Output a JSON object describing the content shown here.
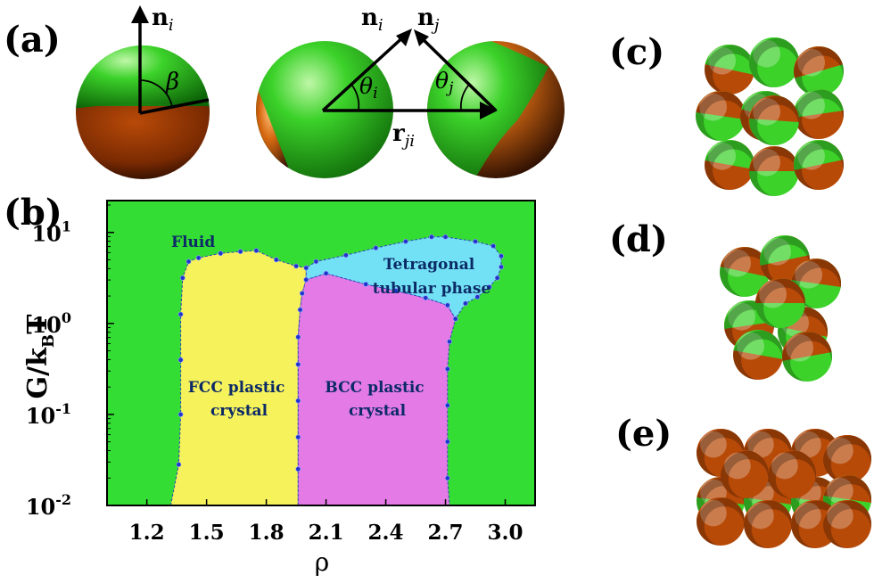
{
  "panel_labels": {
    "a": "(a)",
    "b": "(b)",
    "c": "(c)",
    "d": "(d)",
    "e": "(e)"
  },
  "vectors": {
    "n_i_single": "n",
    "n_i_single_sub": "i",
    "beta": "β",
    "n_i_pair": "n",
    "n_i_pair_sub": "i",
    "n_j_pair": "n",
    "n_j_pair_sub": "j",
    "theta_i": "θ",
    "theta_i_sub": "i",
    "theta_j": "θ",
    "theta_j_sub": "j",
    "r_ji": "r",
    "r_ji_sub": "ji"
  },
  "colors": {
    "patch_green": "#3cd22a",
    "patch_orange": "#b84a08",
    "fluid": "#33dd33",
    "fcc": "#f6f25c",
    "bcc": "#e37ae6",
    "tetragonal": "#73e1f5",
    "boundary_points": "#2233cc"
  },
  "chart_data": {
    "type": "area",
    "title": "",
    "xlabel": "ρ",
    "ylabel_main": "G/k",
    "ylabel_sub": "B",
    "ylabel_tail": "T",
    "xlim": [
      1.0,
      3.15
    ],
    "ylim_log10": [
      -2,
      1.35
    ],
    "y_scale": "log",
    "grid": false,
    "xticks": [
      1.2,
      1.5,
      1.8,
      2.1,
      2.4,
      2.7,
      3.0
    ],
    "xtick_labels": [
      "1.2",
      "1.5",
      "1.8",
      "2.1",
      "2.4",
      "2.7",
      "3.0"
    ],
    "yticks_log10": [
      -2,
      -1,
      0,
      1
    ],
    "ytick_bases": [
      "10",
      "10",
      "10",
      "10"
    ],
    "ytick_exps": [
      "-2",
      "-1",
      "0",
      "1"
    ],
    "phases": [
      {
        "name": "Fluid",
        "label_lines": [
          "Fluid"
        ]
      },
      {
        "name": "FCC plastic crystal",
        "label_lines": [
          "FCC plastic",
          "crystal"
        ],
        "boundary": [
          [
            1.32,
            -2
          ],
          [
            1.36,
            -1.55
          ],
          [
            1.37,
            -1.0
          ],
          [
            1.37,
            -0.4
          ],
          [
            1.37,
            0.1
          ],
          [
            1.38,
            0.5
          ],
          [
            1.41,
            0.68
          ],
          [
            1.46,
            0.72
          ],
          [
            1.57,
            0.77
          ],
          [
            1.67,
            0.79
          ],
          [
            1.75,
            0.8
          ],
          [
            1.85,
            0.7
          ],
          [
            1.95,
            0.63
          ],
          [
            2.0,
            0.61
          ],
          [
            2.0,
            0.48
          ],
          [
            1.98,
            0.33
          ],
          [
            1.97,
            0.15
          ],
          [
            1.96,
            -0.15
          ],
          [
            1.96,
            -0.45
          ],
          [
            1.96,
            -0.85
          ],
          [
            1.96,
            -1.25
          ],
          [
            1.96,
            -1.6
          ],
          [
            1.96,
            -2
          ]
        ]
      },
      {
        "name": "BCC plastic crystal",
        "label_lines": [
          "BCC  plastic",
          "crystal"
        ],
        "boundary": [
          [
            1.96,
            -2
          ],
          [
            1.96,
            -1.6
          ],
          [
            1.96,
            -1.25
          ],
          [
            1.96,
            -0.85
          ],
          [
            1.96,
            -0.45
          ],
          [
            1.96,
            -0.15
          ],
          [
            1.97,
            0.15
          ],
          [
            1.98,
            0.33
          ],
          [
            2.0,
            0.48
          ],
          [
            2.1,
            0.55
          ],
          [
            2.3,
            0.43
          ],
          [
            2.45,
            0.36
          ],
          [
            2.6,
            0.28
          ],
          [
            2.71,
            0.2
          ],
          [
            2.75,
            0.05
          ],
          [
            2.72,
            -0.2
          ],
          [
            2.71,
            -0.5
          ],
          [
            2.71,
            -0.9
          ],
          [
            2.71,
            -1.3
          ],
          [
            2.71,
            -1.7
          ],
          [
            2.72,
            -2
          ]
        ]
      },
      {
        "name": "Tetragonal tubular phase",
        "label_lines": [
          "Tetragonal",
          "tubular phase"
        ],
        "boundary": [
          [
            2.0,
            0.48
          ],
          [
            2.0,
            0.61
          ],
          [
            2.05,
            0.68
          ],
          [
            2.2,
            0.75
          ],
          [
            2.35,
            0.83
          ],
          [
            2.5,
            0.9
          ],
          [
            2.63,
            0.95
          ],
          [
            2.7,
            0.95
          ],
          [
            2.85,
            0.9
          ],
          [
            2.94,
            0.85
          ],
          [
            2.98,
            0.74
          ],
          [
            2.98,
            0.62
          ],
          [
            2.96,
            0.5
          ],
          [
            2.92,
            0.4
          ],
          [
            2.86,
            0.29
          ],
          [
            2.8,
            0.22
          ],
          [
            2.75,
            0.05
          ],
          [
            2.71,
            0.2
          ],
          [
            2.6,
            0.28
          ],
          [
            2.45,
            0.36
          ],
          [
            2.3,
            0.43
          ],
          [
            2.1,
            0.55
          ]
        ]
      }
    ]
  }
}
